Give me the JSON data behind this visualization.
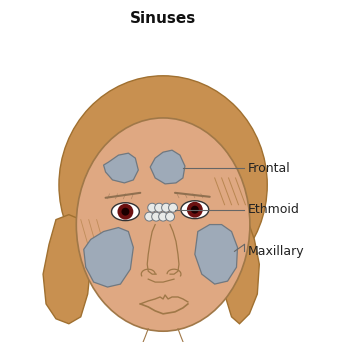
{
  "title": "Sinuses",
  "title_fontsize": 11,
  "title_fontweight": "bold",
  "bg_color": "#ffffff",
  "skin_color": "#DFA882",
  "skin_edge": "#A07848",
  "hair_color": "#C89050",
  "hair_color_dark": "#A07030",
  "sinus_color": "#9EAAB8",
  "sinus_edge": "#707880",
  "eye_color": "#6B1010",
  "label_frontal": "Frontal",
  "label_ethmoid": "Ethmoid",
  "label_maxillary": "Maxillary",
  "label_fontsize": 9,
  "label_color": "#222222",
  "line_color": "#666666",
  "line_width": 0.8
}
